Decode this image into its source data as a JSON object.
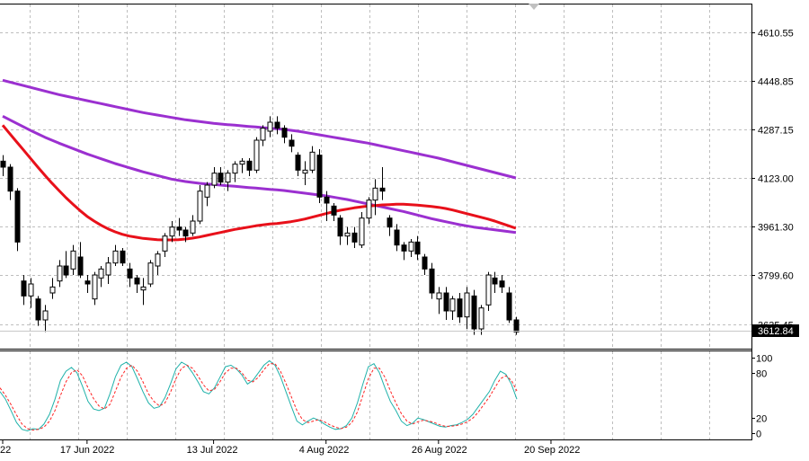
{
  "chart_data": [
    {
      "panel": "main",
      "type": "candlestick",
      "ylim": [
        3560,
        4700
      ],
      "y_ticks": [
        "4610.55",
        "4448.85",
        "4287.15",
        "4123.00",
        "3961.30",
        "3799.60",
        "3635.45"
      ],
      "current_price": "3612.84",
      "x_labels": [
        {
          "i": 0,
          "label": "22"
        },
        {
          "i": 12,
          "label": "17 Jun 2022"
        },
        {
          "i": 30,
          "label": "13 Jul 2022"
        },
        {
          "i": 46,
          "label": "4 Aug 2022"
        },
        {
          "i": 62,
          "label": "26 Aug 2022"
        },
        {
          "i": 78,
          "label": "20 Sep 2022"
        }
      ],
      "candles": [
        [
          4180,
          4200,
          4130,
          4160
        ],
        [
          4160,
          4170,
          4050,
          4080
        ],
        [
          4080,
          4090,
          3880,
          3910
        ],
        [
          3780,
          3800,
          3700,
          3730
        ],
        [
          3730,
          3790,
          3690,
          3770
        ],
        [
          3720,
          3730,
          3630,
          3650
        ],
        [
          3650,
          3700,
          3610,
          3680
        ],
        [
          3740,
          3790,
          3720,
          3760
        ],
        [
          3780,
          3850,
          3760,
          3830
        ],
        [
          3830,
          3880,
          3790,
          3800
        ],
        [
          3820,
          3900,
          3800,
          3880
        ],
        [
          3860,
          3910,
          3790,
          3800
        ],
        [
          3780,
          3800,
          3740,
          3770
        ],
        [
          3720,
          3810,
          3700,
          3800
        ],
        [
          3790,
          3830,
          3760,
          3820
        ],
        [
          3800,
          3860,
          3770,
          3840
        ],
        [
          3840,
          3900,
          3830,
          3880
        ],
        [
          3880,
          3890,
          3830,
          3840
        ],
        [
          3820,
          3840,
          3760,
          3790
        ],
        [
          3790,
          3800,
          3740,
          3770
        ],
        [
          3750,
          3790,
          3700,
          3760
        ],
        [
          3770,
          3850,
          3760,
          3840
        ],
        [
          3830,
          3880,
          3800,
          3870
        ],
        [
          3880,
          3940,
          3860,
          3930
        ],
        [
          3930,
          3980,
          3910,
          3960
        ],
        [
          3960,
          3990,
          3930,
          3950
        ],
        [
          3950,
          3960,
          3910,
          3930
        ],
        [
          3940,
          4000,
          3930,
          3980
        ],
        [
          3980,
          4100,
          3970,
          4080
        ],
        [
          4060,
          4110,
          4030,
          4100
        ],
        [
          4100,
          4160,
          4090,
          4140
        ],
        [
          4140,
          4160,
          4100,
          4110
        ],
        [
          4110,
          4150,
          4080,
          4140
        ],
        [
          4140,
          4180,
          4110,
          4170
        ],
        [
          4170,
          4190,
          4140,
          4180
        ],
        [
          4180,
          4190,
          4130,
          4150
        ],
        [
          4150,
          4260,
          4140,
          4250
        ],
        [
          4250,
          4300,
          4230,
          4290
        ],
        [
          4280,
          4330,
          4260,
          4310
        ],
        [
          4310,
          4330,
          4270,
          4290
        ],
        [
          4290,
          4300,
          4240,
          4260
        ],
        [
          4250,
          4270,
          4210,
          4230
        ],
        [
          4200,
          4210,
          4130,
          4150
        ],
        [
          4140,
          4180,
          4100,
          4150
        ],
        [
          4150,
          4230,
          4140,
          4210
        ],
        [
          4200,
          4220,
          4040,
          4060
        ],
        [
          4060,
          4080,
          3980,
          4040
        ],
        [
          4030,
          4040,
          3980,
          4000
        ],
        [
          3990,
          4000,
          3900,
          3930
        ],
        [
          3930,
          3960,
          3900,
          3940
        ],
        [
          3940,
          3960,
          3890,
          3910
        ],
        [
          3900,
          4010,
          3890,
          3990
        ],
        [
          3990,
          4060,
          3970,
          4050
        ],
        [
          4050,
          4120,
          4000,
          4090
        ],
        [
          4090,
          4160,
          4050,
          4080
        ],
        [
          3990,
          4000,
          3930,
          3960
        ],
        [
          3950,
          3970,
          3880,
          3900
        ],
        [
          3900,
          3910,
          3850,
          3880
        ],
        [
          3880,
          3920,
          3860,
          3910
        ],
        [
          3910,
          3930,
          3850,
          3870
        ],
        [
          3860,
          3870,
          3800,
          3820
        ],
        [
          3820,
          3840,
          3720,
          3740
        ],
        [
          3720,
          3760,
          3670,
          3740
        ],
        [
          3740,
          3760,
          3650,
          3680
        ],
        [
          3680,
          3730,
          3650,
          3720
        ],
        [
          3720,
          3740,
          3640,
          3660
        ],
        [
          3660,
          3760,
          3620,
          3740
        ],
        [
          3730,
          3750,
          3600,
          3620
        ],
        [
          3620,
          3700,
          3600,
          3690
        ],
        [
          3700,
          3810,
          3680,
          3800
        ],
        [
          3790,
          3810,
          3740,
          3770
        ],
        [
          3780,
          3800,
          3740,
          3760
        ],
        [
          3740,
          3760,
          3640,
          3650
        ],
        [
          3650,
          3660,
          3600,
          3610
        ]
      ],
      "series": [
        {
          "color": "#9B30D0",
          "values": [
            4450,
            4444,
            4438,
            4432,
            4426,
            4420,
            4414,
            4408,
            4402,
            4397,
            4392,
            4387,
            4382,
            4377,
            4372,
            4367,
            4362,
            4357,
            4352,
            4347,
            4342,
            4338,
            4334,
            4330,
            4326,
            4322,
            4318,
            4315,
            4312,
            4309,
            4306,
            4304,
            4302,
            4300,
            4298,
            4296,
            4294,
            4292,
            4290,
            4288,
            4286,
            4283,
            4280,
            4276,
            4272,
            4268,
            4264,
            4260,
            4256,
            4252,
            4248,
            4244,
            4240,
            4235,
            4230,
            4225,
            4220,
            4215,
            4210,
            4205,
            4200,
            4195,
            4190,
            4184,
            4178,
            4172,
            4166,
            4160,
            4154,
            4148,
            4142,
            4136,
            4130,
            4124
          ]
        },
        {
          "color": "#9B30D0",
          "values": [
            4330,
            4318,
            4306,
            4294,
            4282,
            4271,
            4260,
            4250,
            4240,
            4231,
            4222,
            4213,
            4204,
            4196,
            4188,
            4180,
            4172,
            4165,
            4158,
            4151,
            4144,
            4138,
            4132,
            4126,
            4120,
            4116,
            4112,
            4109,
            4106,
            4104,
            4102,
            4100,
            4098,
            4096,
            4094,
            4092,
            4090,
            4088,
            4086,
            4084,
            4082,
            4079,
            4076,
            4073,
            4070,
            4067,
            4064,
            4060,
            4056,
            4052,
            4047,
            4042,
            4037,
            4032,
            4027,
            4022,
            4017,
            4012,
            4006,
            4000,
            3994,
            3988,
            3983,
            3978,
            3973,
            3968,
            3964,
            3960,
            3957,
            3954,
            3951,
            3948,
            3945,
            3942
          ]
        },
        {
          "color": "#E8101A",
          "values": [
            4300,
            4272,
            4244,
            4216,
            4188,
            4160,
            4133,
            4107,
            4082,
            4058,
            4036,
            4015,
            3996,
            3980,
            3966,
            3954,
            3944,
            3936,
            3930,
            3926,
            3922,
            3920,
            3918,
            3917,
            3917,
            3918,
            3920,
            3923,
            3927,
            3932,
            3937,
            3942,
            3947,
            3952,
            3956,
            3960,
            3964,
            3967,
            3970,
            3972,
            3975,
            3978,
            3982,
            3987,
            3993,
            3999,
            4005,
            4011,
            4016,
            4020,
            4024,
            4027,
            4030,
            4032,
            4034,
            4035,
            4036,
            4036,
            4035,
            4033,
            4031,
            4029,
            4026,
            4022,
            4017,
            4011,
            4005,
            3999,
            3993,
            3987,
            3980,
            3972,
            3964,
            3956
          ]
        }
      ]
    },
    {
      "panel": "oscillator",
      "type": "line",
      "ylim": [
        0,
        100
      ],
      "y_ticks": [
        "100",
        "80",
        "20",
        "0"
      ],
      "series": [
        {
          "color": "#20B2AA",
          "values": [
            55,
            45,
            30,
            14,
            5,
            3,
            6,
            5,
            12,
            25,
            45,
            70,
            82,
            87,
            80,
            62,
            42,
            32,
            30,
            33,
            52,
            75,
            90,
            94,
            88,
            72,
            55,
            40,
            33,
            35,
            47,
            65,
            85,
            94,
            90,
            80,
            68,
            55,
            52,
            60,
            74,
            88,
            90,
            85,
            77,
            65,
            70,
            80,
            90,
            96,
            90,
            75,
            55,
            35,
            16,
            11,
            16,
            20,
            17,
            12,
            8,
            5,
            6,
            10,
            20,
            40,
            65,
            88,
            92,
            80,
            60,
            42,
            30,
            16,
            10,
            13,
            20,
            18,
            15,
            12,
            9,
            8,
            10,
            11,
            14,
            18,
            25,
            35,
            45,
            55,
            70,
            82,
            78,
            65,
            45
          ]
        },
        {
          "color": "#FF2222",
          "values": [
            60,
            50,
            38,
            24,
            12,
            6,
            4,
            5,
            8,
            16,
            30,
            50,
            68,
            80,
            84,
            76,
            60,
            46,
            36,
            32,
            38,
            56,
            74,
            86,
            90,
            82,
            68,
            52,
            42,
            36,
            40,
            54,
            72,
            86,
            90,
            86,
            76,
            64,
            56,
            58,
            68,
            80,
            86,
            86,
            80,
            70,
            68,
            74,
            84,
            92,
            92,
            82,
            66,
            48,
            30,
            18,
            14,
            16,
            18,
            15,
            11,
            8,
            6,
            8,
            14,
            28,
            50,
            72,
            86,
            86,
            74,
            56,
            40,
            26,
            16,
            12,
            15,
            17,
            16,
            14,
            11,
            9,
            9,
            10,
            12,
            15,
            20,
            28,
            38,
            48,
            60,
            72,
            76,
            70,
            56
          ]
        }
      ]
    }
  ]
}
